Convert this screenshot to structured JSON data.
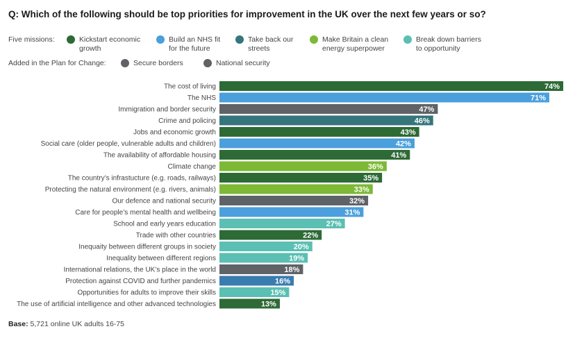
{
  "title": "Q: Which of the following should be top priorities for improvement in the UK over the next few years or so?",
  "legend": {
    "missions_label": "Five missions:",
    "missions": [
      {
        "line1": "Kickstart economic",
        "line2": "growth",
        "color": "#2d6a35"
      },
      {
        "line1": "Build an NHS fit",
        "line2": "for the future",
        "color": "#4a9fdc"
      },
      {
        "line1": "Take back our",
        "line2": "streets",
        "color": "#35757c"
      },
      {
        "line1": "Make Britain a clean",
        "line2": "energy superpower",
        "color": "#7db935"
      },
      {
        "line1": "Break down barriers",
        "line2": "to opportunity",
        "color": "#5bbfb3"
      }
    ],
    "added_label": "Added in the Plan for Change:",
    "added": [
      {
        "line1": "Secure borders",
        "color": "#5f6266"
      },
      {
        "line1": "National security",
        "color": "#5f6266"
      }
    ]
  },
  "base": {
    "label": "Base:",
    "text": "5,721 online UK adults 16-75"
  },
  "chart_data": {
    "type": "bar",
    "orientation": "horizontal",
    "title": "Q: Which of the following should be top priorities for improvement in the UK over the next few years or so?",
    "xlabel": "",
    "ylabel": "",
    "xlim": [
      0,
      100
    ],
    "unit": "%",
    "grid": false,
    "categories": [
      "The cost of living",
      "The NHS",
      "Immigration and border security",
      "Crime and policing",
      "Jobs and economic growth",
      "Social care (older people, vulnerable adults and children)",
      "The availability of affordable housing",
      "Climate change",
      "The country’s infrastucture (e.g. roads, railways)",
      "Protecting the natural environment (e.g. rivers, animals)",
      "Our defence and national security",
      "Care for people’s mental health and wellbeing",
      "School and early years education",
      "Trade with other countries",
      "Inequaity between different groups in society",
      "Inequality between different regions",
      "International relations, the UK’s place in the world",
      "Protection against COVID and further pandemics",
      "Opportunities for adults to improve their skills",
      "The use of artificial intelligence and other advanced technologies"
    ],
    "values": [
      74,
      71,
      47,
      46,
      43,
      42,
      41,
      36,
      35,
      33,
      32,
      31,
      27,
      22,
      20,
      19,
      18,
      16,
      15,
      13
    ],
    "value_labels": [
      "74%",
      "71%",
      "47%",
      "46%",
      "43%",
      "42%",
      "41%",
      "36%",
      "35%",
      "33%",
      "32%",
      "31%",
      "27%",
      "22%",
      "20%",
      "19%",
      "18%",
      "16%",
      "15%",
      "13%"
    ],
    "colors": [
      "#2d6a35",
      "#4a9fdc",
      "#5f6266",
      "#35757c",
      "#2d6a35",
      "#4a9fdc",
      "#2d6a35",
      "#7db935",
      "#2d6a35",
      "#7db935",
      "#5f6266",
      "#4a9fdc",
      "#5bbfb3",
      "#2d6a35",
      "#5bbfb3",
      "#5bbfb3",
      "#5f6266",
      "#3a7bb0",
      "#5bbfb3",
      "#2d6a35"
    ],
    "legend": "top"
  }
}
